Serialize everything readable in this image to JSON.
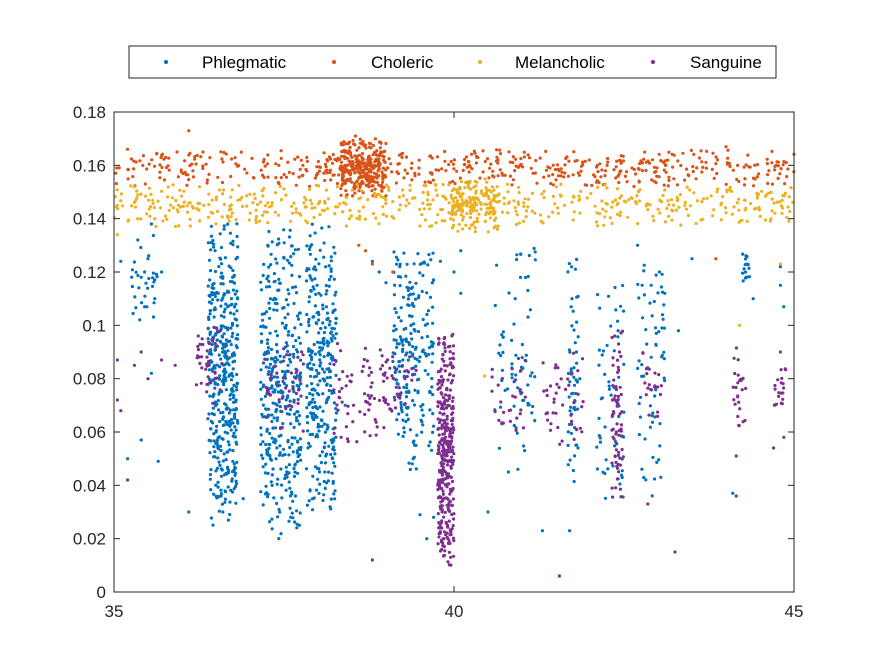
{
  "chart_data": {
    "type": "scatter",
    "title": "",
    "xlabel": "",
    "ylabel": "",
    "xlim": [
      35,
      45
    ],
    "ylim": [
      0,
      0.18
    ],
    "x_ticks": [
      35,
      40,
      45
    ],
    "x_tick_labels": [
      "35",
      "40",
      "45"
    ],
    "y_ticks": [
      0,
      0.02,
      0.04,
      0.06,
      0.08,
      0.1,
      0.12,
      0.14,
      0.16,
      0.18
    ],
    "y_tick_labels": [
      "0",
      "0.02",
      "0.04",
      "0.06",
      "0.08",
      "0.1",
      "0.12",
      "0.14",
      "0.16",
      "0.18"
    ],
    "grid": false,
    "legend_position": "top (above plot, horizontal)",
    "series": [
      {
        "name": "Phlegmatic",
        "color": "#0072BD",
        "points": [
          [
            35.1,
            0.124
          ],
          [
            35.2,
            0.05
          ],
          [
            35.35,
            0.132
          ],
          [
            35.4,
            0.118
          ],
          [
            35.45,
            0.107
          ],
          [
            35.4,
            0.057
          ],
          [
            35.5,
            0.125
          ],
          [
            35.55,
            0.138
          ],
          [
            35.6,
            0.11
          ],
          [
            35.7,
            0.12
          ],
          [
            35.65,
            0.049
          ],
          [
            35.55,
            0.082
          ],
          [
            36.1,
            0.03
          ],
          [
            36.5,
            0.06
          ],
          [
            36.9,
            0.035
          ],
          [
            36.6,
            0.03
          ],
          [
            37.3,
            0.11
          ],
          [
            37.3,
            0.05
          ],
          [
            37.6,
            0.028
          ],
          [
            37.4,
            0.07
          ],
          [
            37.7,
            0.09
          ],
          [
            38.1,
            0.045
          ],
          [
            38.4,
            0.07
          ],
          [
            38.8,
            0.124
          ],
          [
            38.9,
            0.12
          ],
          [
            39.0,
            0.116
          ],
          [
            39.3,
            0.075
          ],
          [
            39.4,
            0.05
          ],
          [
            39.5,
            0.029
          ],
          [
            39.6,
            0.02
          ],
          [
            39.7,
            0.028
          ],
          [
            39.8,
            0.124
          ],
          [
            40.0,
            0.12
          ],
          [
            40.1,
            0.112
          ],
          [
            40.1,
            0.128
          ],
          [
            40.5,
            0.03
          ],
          [
            40.8,
            0.045
          ],
          [
            40.9,
            0.11
          ],
          [
            41.7,
            0.023
          ],
          [
            41.3,
            0.023
          ],
          [
            41.85,
            0.08
          ],
          [
            41.8,
            0.09
          ],
          [
            42.9,
            0.088
          ],
          [
            42.7,
            0.13
          ],
          [
            42.9,
            0.115
          ],
          [
            43.1,
            0.112
          ],
          [
            43.3,
            0.098
          ],
          [
            43.5,
            0.125
          ],
          [
            44.3,
            0.118
          ],
          [
            44.1,
            0.037
          ],
          [
            44.4,
            0.11
          ],
          [
            44.8,
            0.122
          ],
          [
            44.8,
            0.115
          ],
          [
            44.85,
            0.107
          ],
          [
            44.8,
            0.09
          ]
        ],
        "clusters": [
          {
            "x": 36.6,
            "dx": 0.22,
            "y": [
              0.025,
              0.139
            ],
            "n": 420
          },
          {
            "x": 37.45,
            "dx": 0.3,
            "y": [
              0.02,
              0.136
            ],
            "n": 380
          },
          {
            "x": 38.05,
            "dx": 0.22,
            "y": [
              0.03,
              0.138
            ],
            "n": 300
          },
          {
            "x": 39.4,
            "dx": 0.3,
            "y": [
              0.045,
              0.13
            ],
            "n": 220
          },
          {
            "x": 40.9,
            "dx": 0.3,
            "y": [
              0.045,
              0.132
            ],
            "n": 70
          },
          {
            "x": 41.75,
            "dx": 0.08,
            "y": [
              0.04,
              0.128
            ],
            "n": 55
          },
          {
            "x": 42.3,
            "dx": 0.2,
            "y": [
              0.03,
              0.125
            ],
            "n": 55
          },
          {
            "x": 42.9,
            "dx": 0.2,
            "y": [
              0.03,
              0.125
            ],
            "n": 65
          },
          {
            "x": 44.3,
            "dx": 0.06,
            "y": [
              0.11,
              0.13
            ],
            "n": 15
          },
          {
            "x": 35.45,
            "dx": 0.2,
            "y": [
              0.1,
              0.135
            ],
            "n": 30
          }
        ]
      },
      {
        "name": "Choleric",
        "color": "#D95319",
        "points": [
          [
            35.2,
            0.166
          ],
          [
            36.1,
            0.173
          ],
          [
            38.55,
            0.171
          ],
          [
            38.8,
            0.123
          ],
          [
            38.7,
            0.128
          ],
          [
            38.6,
            0.13
          ],
          [
            39.1,
            0.12
          ],
          [
            43.85,
            0.125
          ],
          [
            44.0,
            0.167
          ]
        ],
        "clusters": [
          {
            "x": 40.0,
            "dx": 5.0,
            "y": [
              0.152,
              0.166
            ],
            "n": 520
          },
          {
            "x": 38.65,
            "dx": 0.35,
            "y": [
              0.148,
              0.17
            ],
            "n": 260
          }
        ]
      },
      {
        "name": "Melancholic",
        "color": "#EDB120",
        "points": [
          [
            35.05,
            0.134
          ],
          [
            35.05,
            0.145
          ],
          [
            44.2,
            0.1
          ],
          [
            44.8,
            0.123
          ],
          [
            40.45,
            0.081
          ],
          [
            35.6,
            0.14
          ]
        ],
        "clusters": [
          {
            "x": 40.0,
            "dx": 5.0,
            "y": [
              0.137,
              0.153
            ],
            "n": 520
          },
          {
            "x": 40.3,
            "dx": 0.35,
            "y": [
              0.135,
              0.155
            ],
            "n": 140
          }
        ]
      },
      {
        "name": "Sanguine",
        "color": "#7E2F8E",
        "points": [
          [
            35.05,
            0.087
          ],
          [
            35.05,
            0.072
          ],
          [
            35.1,
            0.068
          ],
          [
            35.2,
            0.042
          ],
          [
            35.3,
            0.085
          ],
          [
            35.4,
            0.09
          ],
          [
            35.5,
            0.08
          ],
          [
            35.7,
            0.087
          ],
          [
            35.9,
            0.085
          ],
          [
            36.4,
            0.085
          ],
          [
            38.8,
            0.012
          ],
          [
            39.95,
            0.013
          ],
          [
            39.85,
            0.02
          ],
          [
            41.55,
            0.006
          ],
          [
            42.85,
            0.033
          ],
          [
            43.25,
            0.015
          ],
          [
            44.15,
            0.036
          ],
          [
            44.7,
            0.054
          ],
          [
            44.85,
            0.058
          ],
          [
            44.15,
            0.051
          ]
        ],
        "clusters": [
          {
            "x": 39.88,
            "dx": 0.12,
            "y": [
              0.01,
              0.097
            ],
            "n": 360
          },
          {
            "x": 36.4,
            "dx": 0.2,
            "y": [
              0.07,
              0.1
            ],
            "n": 40
          },
          {
            "x": 37.5,
            "dx": 0.3,
            "y": [
              0.06,
              0.095
            ],
            "n": 45
          },
          {
            "x": 38.6,
            "dx": 0.4,
            "y": [
              0.055,
              0.095
            ],
            "n": 70
          },
          {
            "x": 39.2,
            "dx": 0.25,
            "y": [
              0.065,
              0.09
            ],
            "n": 35
          },
          {
            "x": 40.8,
            "dx": 0.25,
            "y": [
              0.06,
              0.09
            ],
            "n": 30
          },
          {
            "x": 41.6,
            "dx": 0.3,
            "y": [
              0.055,
              0.09
            ],
            "n": 45
          },
          {
            "x": 42.4,
            "dx": 0.08,
            "y": [
              0.035,
              0.098
            ],
            "n": 70
          },
          {
            "x": 42.9,
            "dx": 0.15,
            "y": [
              0.065,
              0.09
            ],
            "n": 20
          },
          {
            "x": 44.2,
            "dx": 0.1,
            "y": [
              0.06,
              0.095
            ],
            "n": 25
          },
          {
            "x": 44.8,
            "dx": 0.1,
            "y": [
              0.065,
              0.09
            ],
            "n": 20
          }
        ]
      }
    ]
  }
}
